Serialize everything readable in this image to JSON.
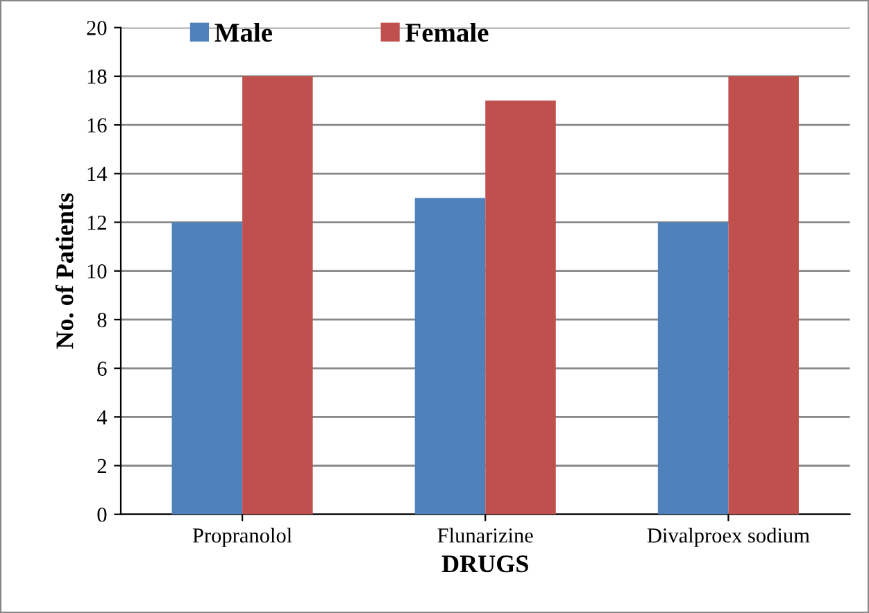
{
  "chart_data": {
    "type": "bar",
    "xlabel": "DRUGS",
    "ylabel": "No. of Patients",
    "categories": [
      "Propranolol",
      "Flunarizine",
      "Divalproex sodium"
    ],
    "series": [
      {
        "name": "Male",
        "color": "#4f81bd",
        "values": [
          12,
          13,
          12
        ]
      },
      {
        "name": "Female",
        "color": "#c0504d",
        "values": [
          18,
          17,
          18
        ]
      }
    ],
    "ylim": [
      0,
      20
    ],
    "yticks": [
      0,
      2,
      4,
      6,
      8,
      10,
      12,
      14,
      16,
      18,
      20
    ],
    "grid": "y",
    "legend": "top"
  }
}
